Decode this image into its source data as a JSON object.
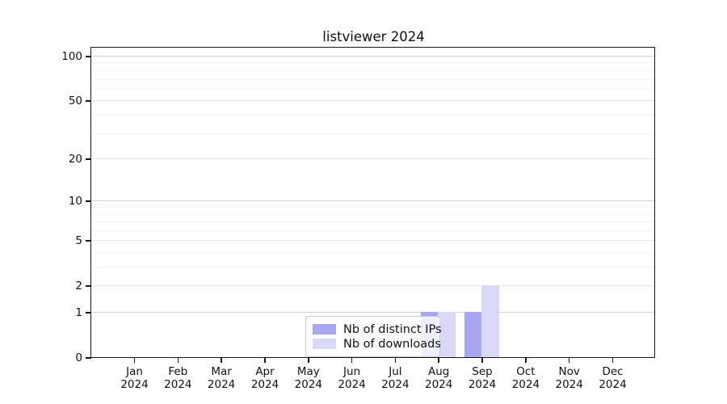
{
  "title": "listviewer 2024",
  "chart_data": {
    "type": "bar",
    "title": "listviewer 2024",
    "categories": [
      "Jan",
      "Feb",
      "Mar",
      "Apr",
      "May",
      "Jun",
      "Jul",
      "Aug",
      "Sep",
      "Oct",
      "Nov",
      "Dec"
    ],
    "category_year": "2024",
    "series": [
      {
        "name": "Nb of distinct IPs",
        "color": "#a8a8f2",
        "values": [
          0,
          0,
          0,
          0,
          0,
          0,
          0,
          1,
          1,
          0,
          0,
          0
        ]
      },
      {
        "name": "Nb of downloads",
        "color": "#d9d9f7",
        "values": [
          0,
          0,
          0,
          0,
          0,
          0,
          0,
          1,
          2,
          0,
          0,
          0
        ]
      }
    ],
    "xlabel": "",
    "ylabel": "",
    "yscale": "symlog",
    "ylim": [
      0,
      113
    ],
    "y_ticks": [
      0,
      1,
      2,
      5,
      10,
      20,
      50,
      100
    ],
    "y_minor_gridlines": [
      3,
      4,
      6,
      7,
      8,
      9,
      30,
      40,
      60,
      70,
      80,
      90
    ],
    "grid": "horizontal",
    "legend_position": "lower center"
  },
  "legend": {
    "entries": [
      "Nb of distinct IPs",
      "Nb of downloads"
    ]
  }
}
